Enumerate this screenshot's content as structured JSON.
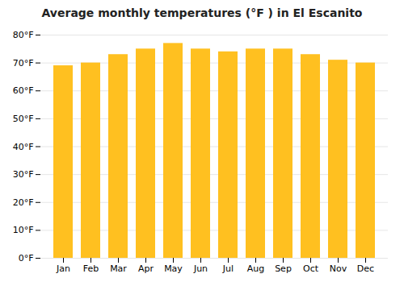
{
  "chart_data": {
    "type": "bar",
    "title": "Average monthly temperatures (°F ) in El Escanito",
    "categories": [
      "Jan",
      "Feb",
      "Mar",
      "Apr",
      "May",
      "Jun",
      "Jul",
      "Aug",
      "Sep",
      "Oct",
      "Nov",
      "Dec"
    ],
    "values": [
      69,
      70,
      73,
      75,
      77,
      75,
      74,
      75,
      75,
      73,
      71,
      70
    ],
    "color": "#FFC020",
    "ylim": [
      0,
      80
    ],
    "yticks": [
      {
        "value": 0,
        "label": "0°F"
      },
      {
        "value": 10,
        "label": "10°F"
      },
      {
        "value": 20,
        "label": "20°F"
      },
      {
        "value": 30,
        "label": "30°F"
      },
      {
        "value": 40,
        "label": "40°F"
      },
      {
        "value": 50,
        "label": "50°F"
      },
      {
        "value": 60,
        "label": "60°F"
      },
      {
        "value": 70,
        "label": "70°F"
      },
      {
        "value": 80,
        "label": "80°F"
      }
    ],
    "grid": true
  }
}
